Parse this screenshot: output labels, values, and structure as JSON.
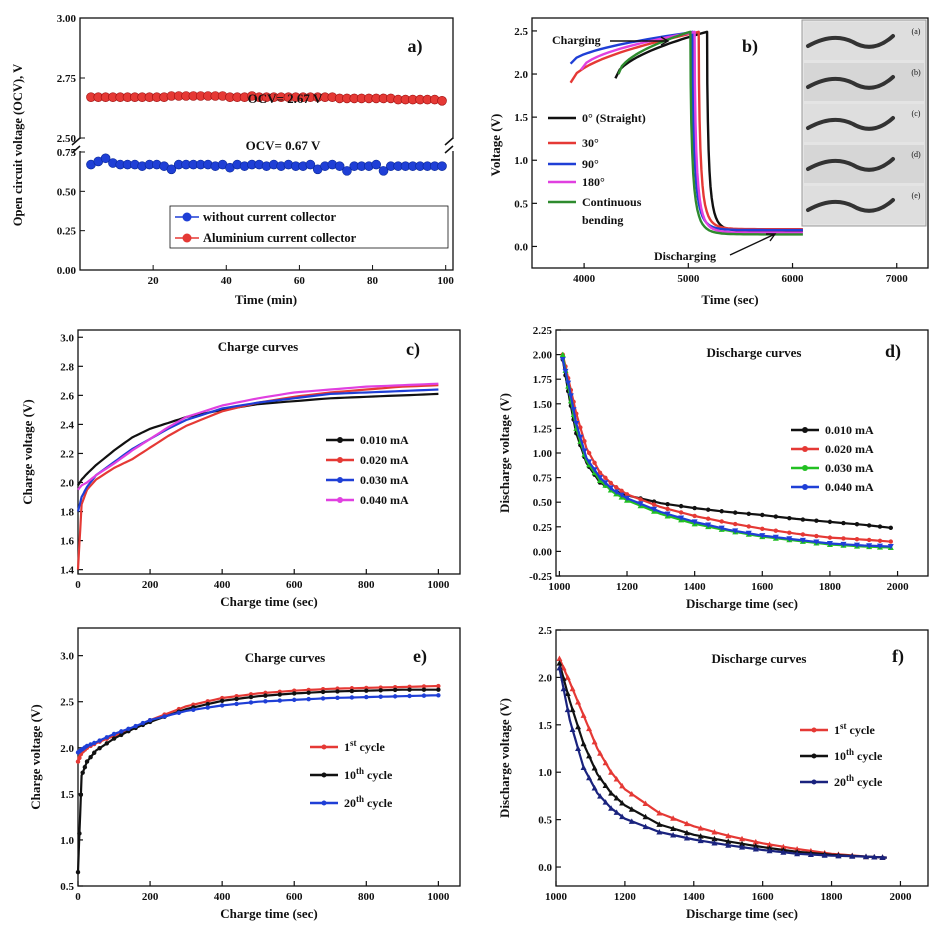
{
  "chart_data": [
    {
      "panel": "a)",
      "type": "scatter",
      "xlabel": "Time (min)",
      "ylabel": "Open circuit voltage (OCV), V",
      "xticks": [
        "20",
        "40",
        "60",
        "80",
        "100"
      ],
      "yticks_lower": [
        "0.00",
        "0.25",
        "0.50",
        "0.75"
      ],
      "yticks_upper": [
        "2.50",
        "2.75",
        "3.00"
      ],
      "annotations": [
        "OCV= 2.67 V",
        "OCV= 0.67 V"
      ],
      "legend": "bottom-right",
      "series": [
        {
          "name": "without current collector",
          "color": "#1f3fd6",
          "x": [
            3,
            5,
            7,
            9,
            11,
            13,
            15,
            17,
            19,
            21,
            23,
            25,
            27,
            29,
            31,
            33,
            35,
            37,
            39,
            41,
            43,
            45,
            47,
            49,
            51,
            53,
            55,
            57,
            59,
            61,
            63,
            65,
            67,
            69,
            71,
            73,
            75,
            77,
            79,
            81,
            83,
            85,
            87,
            89,
            91,
            93,
            95,
            97,
            99
          ],
          "y": [
            0.67,
            0.69,
            0.71,
            0.68,
            0.67,
            0.67,
            0.67,
            0.66,
            0.67,
            0.67,
            0.66,
            0.64,
            0.67,
            0.67,
            0.67,
            0.67,
            0.67,
            0.66,
            0.67,
            0.65,
            0.67,
            0.66,
            0.67,
            0.67,
            0.66,
            0.67,
            0.66,
            0.67,
            0.66,
            0.66,
            0.67,
            0.64,
            0.66,
            0.67,
            0.66,
            0.63,
            0.66,
            0.66,
            0.66,
            0.67,
            0.63,
            0.66,
            0.66,
            0.66,
            0.66,
            0.66,
            0.66,
            0.66,
            0.66
          ]
        },
        {
          "name": "Aluminium current collector",
          "color": "#e53935",
          "x": [
            3,
            5,
            7,
            9,
            11,
            13,
            15,
            17,
            19,
            21,
            23,
            25,
            27,
            29,
            31,
            33,
            35,
            37,
            39,
            41,
            43,
            45,
            47,
            49,
            51,
            53,
            55,
            57,
            59,
            61,
            63,
            65,
            67,
            69,
            71,
            73,
            75,
            77,
            79,
            81,
            83,
            85,
            87,
            89,
            91,
            93,
            95,
            97,
            99
          ],
          "y": [
            2.67,
            2.67,
            2.67,
            2.67,
            2.67,
            2.67,
            2.67,
            2.67,
            2.67,
            2.67,
            2.67,
            2.675,
            2.675,
            2.675,
            2.675,
            2.675,
            2.675,
            2.675,
            2.675,
            2.67,
            2.67,
            2.67,
            2.675,
            2.67,
            2.67,
            2.67,
            2.67,
            2.67,
            2.67,
            2.67,
            2.67,
            2.67,
            2.67,
            2.67,
            2.665,
            2.665,
            2.665,
            2.665,
            2.665,
            2.665,
            2.665,
            2.665,
            2.66,
            2.66,
            2.66,
            2.66,
            2.66,
            2.66,
            2.655
          ]
        }
      ]
    },
    {
      "panel": "b)",
      "type": "line",
      "xlabel": "Time (sec)",
      "ylabel": "Voltage (V)",
      "xlim": [
        3500,
        7300
      ],
      "ylim": [
        -0.25,
        2.65
      ],
      "xticks": [
        4000,
        5000,
        6000,
        7000
      ],
      "yticks": [
        0.0,
        0.5,
        1.0,
        1.5,
        2.0,
        2.5
      ],
      "annotations": [
        "Charging",
        "Discharging"
      ],
      "photo_labels": [
        "(a)",
        "(b)",
        "(c)",
        "(d)",
        "(e)"
      ],
      "legend": "left",
      "series": [
        {
          "name": "0° (Straight)",
          "color": "#111111",
          "charge_start": [
            4300,
            1.95
          ],
          "peak_time": 5180,
          "end": [
            6100,
            0.18
          ]
        },
        {
          "name": "30°",
          "color": "#e53935",
          "charge_start": [
            3870,
            1.9
          ],
          "peak_time": 5100,
          "end": [
            6100,
            0.2
          ]
        },
        {
          "name": "90°",
          "color": "#1f3fd6",
          "charge_start": [
            3870,
            2.12
          ],
          "peak_time": 5040,
          "end": [
            6100,
            0.19
          ]
        },
        {
          "name": "180°",
          "color": "#e040e0",
          "charge_start": [
            3970,
            2.05
          ],
          "peak_time": 5060,
          "end": [
            6100,
            0.16
          ]
        },
        {
          "name": "Continuous bending",
          "color": "#2e8b2e",
          "charge_start": [
            4330,
            2.0
          ],
          "peak_time": 5020,
          "end": [
            6100,
            0.14
          ]
        }
      ]
    },
    {
      "panel": "c)",
      "type": "line",
      "title": "Charge curves",
      "xlabel": "Charge time (sec)",
      "ylabel": "Charge voltage (V)",
      "xlim": [
        0,
        1060
      ],
      "ylim": [
        1.37,
        3.05
      ],
      "xticks": [
        0,
        200,
        400,
        600,
        800,
        1000
      ],
      "yticks": [
        1.4,
        1.6,
        1.8,
        2.0,
        2.2,
        2.4,
        2.6,
        2.8,
        3.0
      ],
      "legend": "right",
      "x": [
        0,
        10,
        25,
        50,
        100,
        150,
        200,
        250,
        300,
        400,
        500,
        600,
        700,
        800,
        900,
        1000
      ],
      "series": [
        {
          "name": "0.010 mA",
          "color": "#111111",
          "values": [
            1.98,
            2.02,
            2.06,
            2.12,
            2.22,
            2.31,
            2.37,
            2.41,
            2.45,
            2.5,
            2.54,
            2.56,
            2.58,
            2.59,
            2.6,
            2.61
          ]
        },
        {
          "name": "0.020 mA",
          "color": "#e53935",
          "values": [
            1.4,
            1.85,
            1.95,
            2.02,
            2.1,
            2.16,
            2.24,
            2.32,
            2.39,
            2.49,
            2.55,
            2.59,
            2.62,
            2.64,
            2.66,
            2.67
          ]
        },
        {
          "name": "0.030 mA",
          "color": "#1f3fd6",
          "values": [
            1.8,
            1.9,
            1.97,
            2.05,
            2.14,
            2.23,
            2.3,
            2.37,
            2.43,
            2.51,
            2.55,
            2.58,
            2.61,
            2.62,
            2.63,
            2.64
          ]
        },
        {
          "name": "0.040 mA",
          "color": "#e040e0",
          "values": [
            1.95,
            1.98,
            2.0,
            2.05,
            2.13,
            2.22,
            2.3,
            2.38,
            2.45,
            2.53,
            2.58,
            2.62,
            2.64,
            2.66,
            2.67,
            2.68
          ]
        }
      ]
    },
    {
      "panel": "d)",
      "type": "line",
      "title": "Discharge curves",
      "xlabel": "Discharge time (sec)",
      "ylabel": "Discharge voltage (V)",
      "xlim": [
        990,
        2090
      ],
      "ylim": [
        -0.25,
        2.25
      ],
      "xticks": [
        1000,
        1200,
        1400,
        1600,
        1800,
        2000
      ],
      "yticks": [
        -0.25,
        0.0,
        0.25,
        0.5,
        0.75,
        1.0,
        1.25,
        1.5,
        1.75,
        2.0,
        2.25
      ],
      "legend": "right",
      "x": [
        1010,
        1030,
        1050,
        1080,
        1120,
        1160,
        1200,
        1300,
        1400,
        1500,
        1600,
        1700,
        1800,
        1900,
        1980
      ],
      "series": [
        {
          "name": "0.010 mA",
          "color": "#111111",
          "values": [
            1.95,
            1.55,
            1.2,
            0.9,
            0.7,
            0.62,
            0.57,
            0.49,
            0.44,
            0.4,
            0.37,
            0.33,
            0.3,
            0.27,
            0.24
          ]
        },
        {
          "name": "0.020 mA",
          "color": "#e53935",
          "values": [
            2.0,
            1.7,
            1.4,
            1.05,
            0.8,
            0.67,
            0.58,
            0.45,
            0.36,
            0.29,
            0.23,
            0.18,
            0.14,
            0.12,
            0.1
          ]
        },
        {
          "name": "0.030 mA",
          "color": "#22c022",
          "values": [
            2.0,
            1.6,
            1.25,
            0.92,
            0.72,
            0.6,
            0.52,
            0.38,
            0.28,
            0.21,
            0.15,
            0.11,
            0.07,
            0.05,
            0.04
          ]
        },
        {
          "name": "0.040 mA",
          "color": "#1f3fd6",
          "values": [
            1.95,
            1.65,
            1.3,
            0.95,
            0.75,
            0.62,
            0.54,
            0.4,
            0.3,
            0.22,
            0.16,
            0.12,
            0.08,
            0.06,
            0.05
          ]
        }
      ]
    },
    {
      "panel": "e)",
      "type": "line",
      "title": "Charge curves",
      "xlabel": "Charge time (sec)",
      "ylabel": "Charge voltage (V)",
      "xlim": [
        0,
        1060
      ],
      "ylim": [
        0.5,
        3.3
      ],
      "xticks": [
        0,
        200,
        400,
        600,
        800,
        1000
      ],
      "yticks": [
        0.5,
        1.0,
        1.5,
        2.0,
        2.5,
        3.0
      ],
      "legend": "right",
      "x": [
        0,
        10,
        25,
        50,
        100,
        150,
        200,
        300,
        400,
        500,
        600,
        700,
        800,
        900,
        1000
      ],
      "series": [
        {
          "name": "1st cycle",
          "color": "#e53935",
          "values": [
            1.85,
            1.95,
            2.0,
            2.05,
            2.13,
            2.21,
            2.3,
            2.45,
            2.54,
            2.59,
            2.62,
            2.64,
            2.65,
            2.66,
            2.67
          ]
        },
        {
          "name": "10th cycle",
          "color": "#111111",
          "values": [
            0.65,
            1.7,
            1.85,
            1.97,
            2.1,
            2.2,
            2.28,
            2.42,
            2.51,
            2.56,
            2.59,
            2.61,
            2.62,
            2.63,
            2.63
          ]
        },
        {
          "name": "20th cycle",
          "color": "#1f3fd6",
          "values": [
            1.95,
            1.98,
            2.02,
            2.06,
            2.15,
            2.22,
            2.3,
            2.4,
            2.46,
            2.5,
            2.52,
            2.54,
            2.55,
            2.56,
            2.57
          ]
        }
      ]
    },
    {
      "panel": "f)",
      "type": "line",
      "title": "Discharge curves",
      "xlabel": "Discharge time (sec)",
      "ylabel": "Discharge voltage (V)",
      "xlim": [
        1000,
        2080
      ],
      "ylim": [
        -0.2,
        2.5
      ],
      "xticks": [
        1000,
        1200,
        1400,
        1600,
        1800,
        2000
      ],
      "yticks": [
        0.0,
        0.5,
        1.0,
        1.5,
        2.0,
        2.5
      ],
      "legend": "right",
      "x": [
        1010,
        1040,
        1080,
        1120,
        1160,
        1200,
        1300,
        1400,
        1500,
        1600,
        1700,
        1800,
        1900,
        1960
      ],
      "series": [
        {
          "name": "1st cycle",
          "color": "#e53935",
          "values": [
            2.2,
            1.95,
            1.6,
            1.25,
            1.0,
            0.82,
            0.57,
            0.43,
            0.33,
            0.25,
            0.19,
            0.14,
            0.11,
            0.1
          ]
        },
        {
          "name": "10th cycle",
          "color": "#111111",
          "values": [
            2.15,
            1.75,
            1.3,
            0.98,
            0.78,
            0.65,
            0.45,
            0.34,
            0.27,
            0.21,
            0.16,
            0.13,
            0.11,
            0.1
          ]
        },
        {
          "name": "20th cycle",
          "color": "#1a237e",
          "values": [
            2.1,
            1.55,
            1.05,
            0.78,
            0.62,
            0.51,
            0.37,
            0.29,
            0.23,
            0.18,
            0.14,
            0.12,
            0.11,
            0.1
          ]
        }
      ]
    }
  ]
}
